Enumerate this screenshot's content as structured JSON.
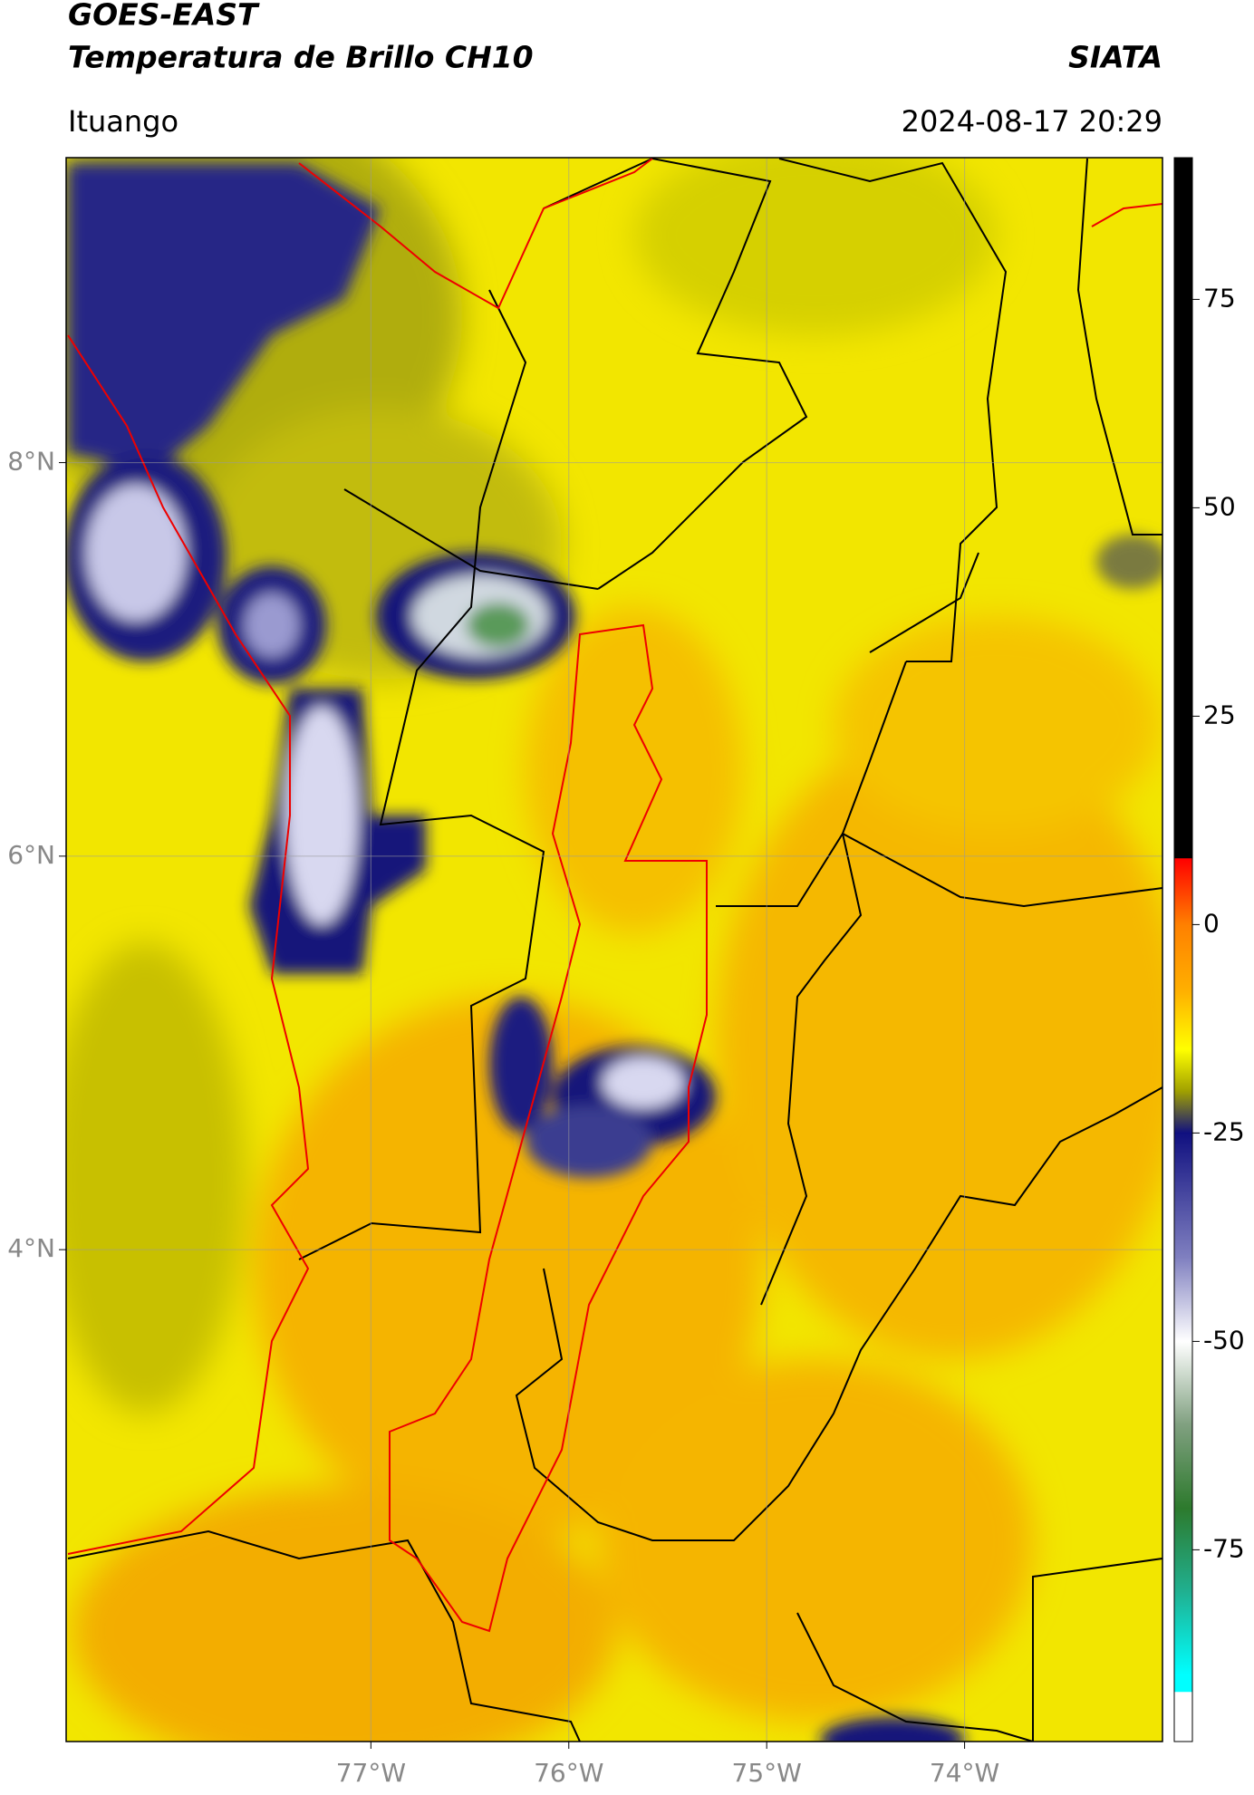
{
  "header": {
    "title": "GOES-EAST",
    "subtitle": "Temperatura de Brillo CH10",
    "brand": "SIATA",
    "location": "Ituango",
    "timestamp": "2024-08-17 20:29"
  },
  "map": {
    "xlim": [
      -78.54,
      -73.0
    ],
    "ylim": [
      1.5,
      9.55
    ],
    "xticks": [
      {
        "value": -77,
        "label": "77°W"
      },
      {
        "value": -76,
        "label": "76°W"
      },
      {
        "value": -75,
        "label": "75°W"
      },
      {
        "value": -74,
        "label": "74°W"
      }
    ],
    "yticks": [
      {
        "value": 8,
        "label": "8°N"
      },
      {
        "value": 6,
        "label": "6°N"
      },
      {
        "value": 4,
        "label": "4°N"
      }
    ],
    "grid": true
  },
  "colorbar": {
    "lim": [
      -98,
      92
    ],
    "ticks": [
      75,
      50,
      25,
      0,
      -25,
      -50,
      -75
    ],
    "stops": [
      {
        "value": 92,
        "color": "#000000"
      },
      {
        "value": 8,
        "color": "#000000"
      },
      {
        "value": 7.9,
        "color": "#ff0000"
      },
      {
        "value": 0,
        "color": "#ff8000"
      },
      {
        "value": -8,
        "color": "#ffb000"
      },
      {
        "value": -15,
        "color": "#ffff00"
      },
      {
        "value": -20,
        "color": "#a0a000"
      },
      {
        "value": -25,
        "color": "#101080"
      },
      {
        "value": -40,
        "color": "#8080c0"
      },
      {
        "value": -50,
        "color": "#ffffff"
      },
      {
        "value": -60,
        "color": "#80a080"
      },
      {
        "value": -70,
        "color": "#2d7a2d"
      },
      {
        "value": -80,
        "color": "#20b090"
      },
      {
        "value": -90,
        "color": "#00ffff"
      },
      {
        "value": -92,
        "color": "#00ffff"
      },
      {
        "value": -92.1,
        "color": "#ffffff"
      },
      {
        "value": -98,
        "color": "#ffffff"
      }
    ]
  }
}
